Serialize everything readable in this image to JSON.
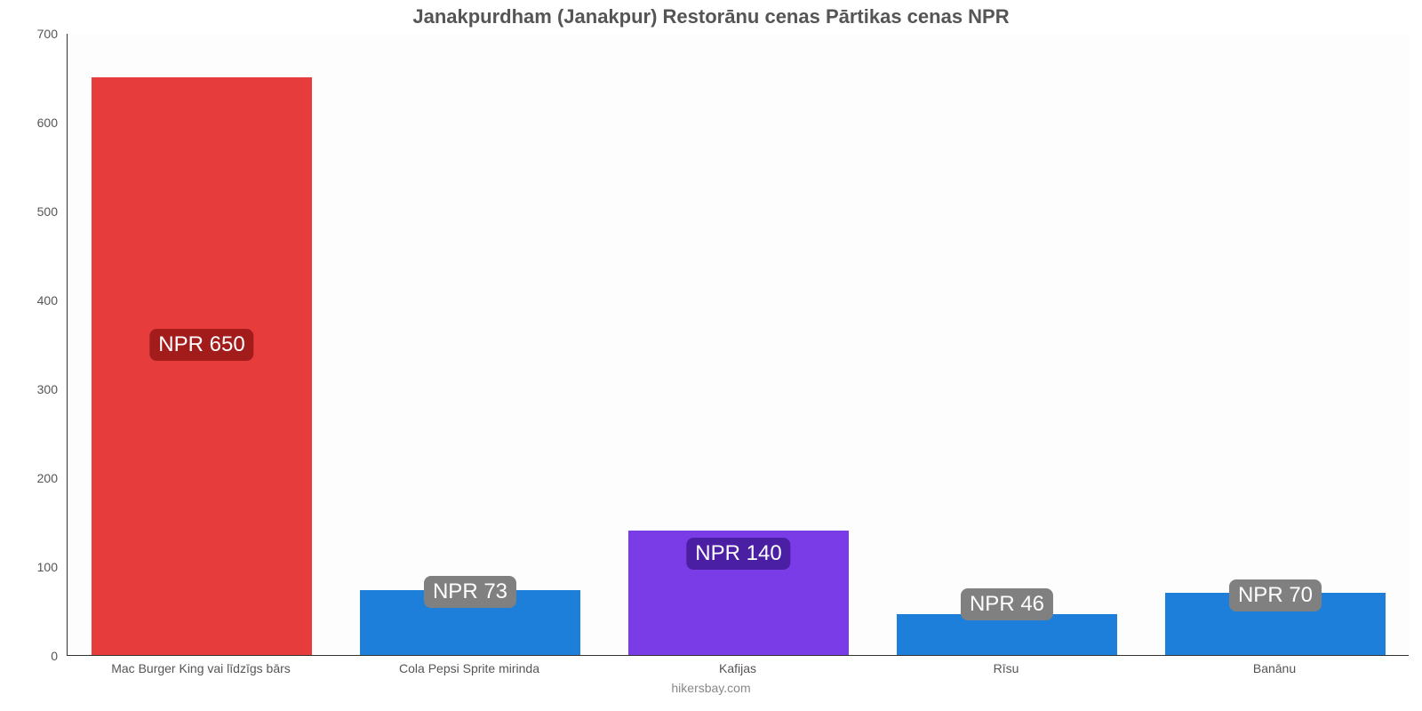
{
  "chart": {
    "type": "bar",
    "title": "Janakpurdham (Janakpur) Restorānu cenas Pārtikas cenas NPR",
    "title_fontsize": 22,
    "title_color": "#555555",
    "footer": "hikersbay.com",
    "footer_fontsize": 14,
    "footer_color": "#888888",
    "background_color": "#ffffff",
    "plot_background_color": "#fdfdfd",
    "axis_color": "#333333",
    "tick_label_color": "#555555",
    "tick_fontsize": 14,
    "xcat_fontsize": 14,
    "ylim": [
      0,
      700
    ],
    "ytick_step": 100,
    "yticks": [
      0,
      100,
      200,
      300,
      400,
      500,
      600,
      700
    ],
    "bar_width_ratio": 0.82,
    "label_fontsize": 24,
    "categories": [
      "Mac Burger King vai līdzīgs bārs",
      "Cola Pepsi Sprite mirinda",
      "Kafijas",
      "Rīsu",
      "Banānu"
    ],
    "values": [
      650,
      73,
      140,
      46,
      70
    ],
    "value_labels": [
      "NPR 650",
      "NPR 73",
      "NPR 140",
      "NPR 46",
      "NPR 70"
    ],
    "bar_colors": [
      "#e73c3c",
      "#1e7fdb",
      "#7a3ce7",
      "#1e7fdb",
      "#1e7fdb"
    ],
    "label_bg_colors": [
      "#a31c1c",
      "#808080",
      "#4a1fa3",
      "#808080",
      "#808080"
    ],
    "label_text_color": "#ffffff",
    "label_y_positions": [
      350,
      72,
      115,
      58,
      68
    ]
  }
}
